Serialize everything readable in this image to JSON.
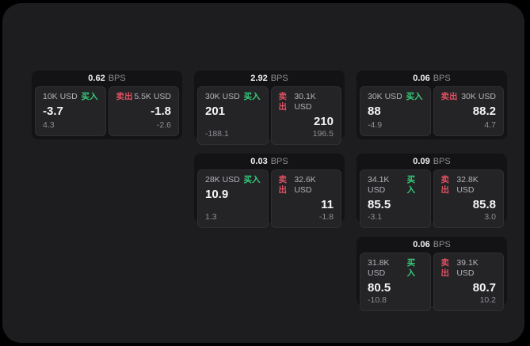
{
  "colors": {
    "page_bg": "#000000",
    "panel_bg": "#1d1d1f",
    "card_bg": "#131315",
    "tile_bg": "#242427",
    "buy_green": "#34cd78",
    "sell_red": "#e04f5f",
    "text_primary": "#f5f5f7",
    "text_secondary": "#b3b3b8",
    "text_tertiary": "#8e8e93"
  },
  "labels": {
    "bps_unit": "BPS",
    "buy": "买入",
    "sell": "卖出"
  },
  "cards": [
    {
      "bps": "0.62",
      "buy": {
        "amount": "10K USD",
        "price": "-3.7",
        "delta": "4.3"
      },
      "sell": {
        "amount": "5.5K USD",
        "price": "-1.8",
        "delta": "-2.6"
      }
    },
    {
      "bps": "2.92",
      "buy": {
        "amount": "30K USD",
        "price": "201",
        "delta": "-188.1"
      },
      "sell": {
        "amount": "30.1K USD",
        "price": "210",
        "delta": "196.5"
      }
    },
    {
      "bps": "0.06",
      "buy": {
        "amount": "30K USD",
        "price": "88",
        "delta": "-4.9"
      },
      "sell": {
        "amount": "30K USD",
        "price": "88.2",
        "delta": "4.7"
      }
    },
    {
      "bps": "0.03",
      "buy": {
        "amount": "28K USD",
        "price": "10.9",
        "delta": "1.3"
      },
      "sell": {
        "amount": "32.6K USD",
        "price": "11",
        "delta": "-1.8"
      }
    },
    {
      "bps": "0.09",
      "buy": {
        "amount": "34.1K USD",
        "price": "85.5",
        "delta": "-3.1"
      },
      "sell": {
        "amount": "32.8K USD",
        "price": "85.8",
        "delta": "3.0"
      }
    },
    {
      "bps": "0.06",
      "buy": {
        "amount": "31.8K USD",
        "price": "80.5",
        "delta": "-10.8"
      },
      "sell": {
        "amount": "39.1K USD",
        "price": "80.7",
        "delta": "10.2"
      }
    }
  ]
}
